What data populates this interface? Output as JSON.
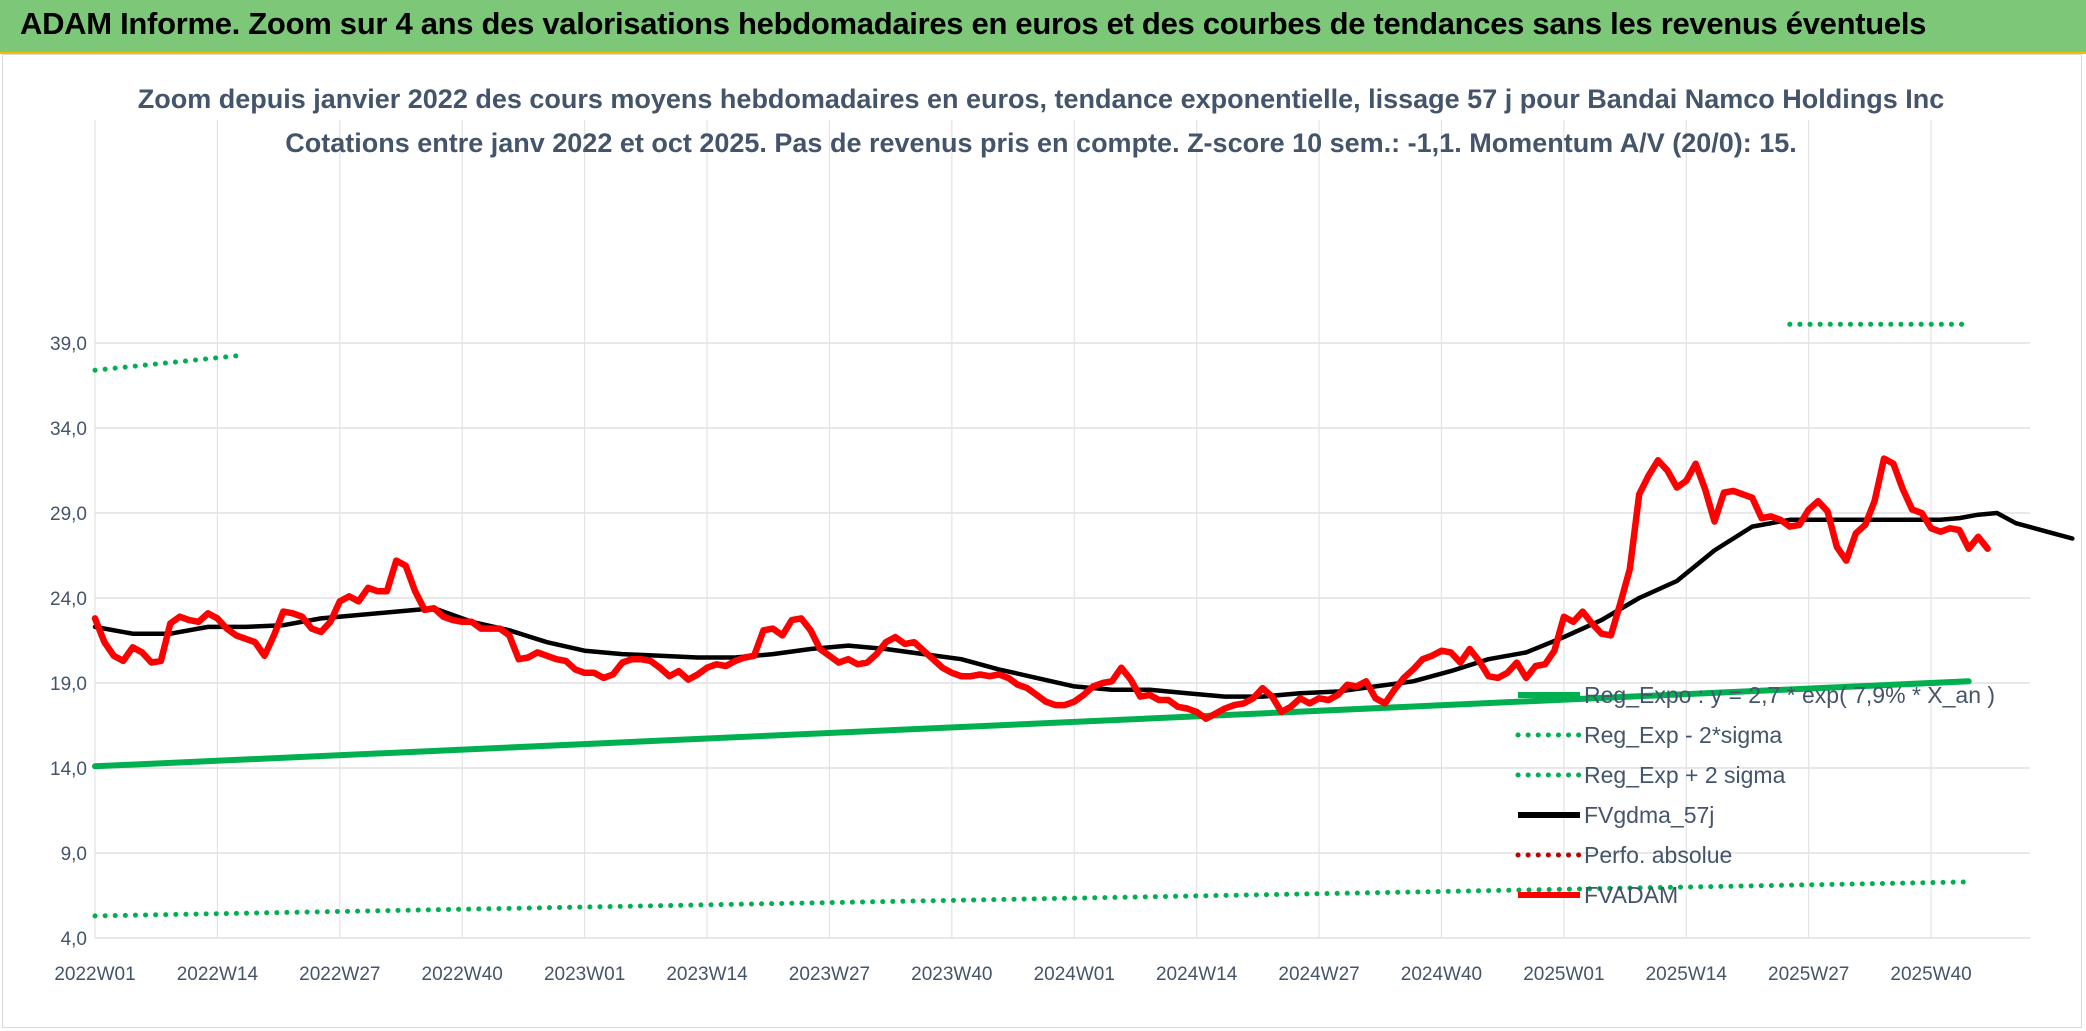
{
  "header": {
    "title": "ADAM Informe. Zoom sur 4 ans des valorisations hebdomadaires en euros et des courbes de tendances sans les revenus éventuels"
  },
  "chart_data": {
    "type": "line",
    "title": "Zoom depuis janvier 2022 des cours moyens hebdomadaires en euros, tendance exponentielle, lissage 57 j pour Bandai Namco Holdings Inc",
    "subtitle": "Cotations entre janv 2022 et oct 2025. Pas de revenus pris en compte. Z-score 10 sem.: -1,1. Momentum A/V (20/0): 15.",
    "xlabel": "",
    "ylabel": "",
    "ylim": [
      4.0,
      40.0
    ],
    "y_ticks": [
      "4,0",
      "9,0",
      "14,0",
      "19,0",
      "24,0",
      "29,0",
      "34,0",
      "39,0"
    ],
    "x_ticks": [
      {
        "label": "2022W01",
        "i": 0
      },
      {
        "label": "2022W14",
        "i": 13
      },
      {
        "label": "2022W27",
        "i": 26
      },
      {
        "label": "2022W40",
        "i": 39
      },
      {
        "label": "2023W01",
        "i": 52
      },
      {
        "label": "2023W14",
        "i": 65
      },
      {
        "label": "2023W27",
        "i": 78
      },
      {
        "label": "2023W40",
        "i": 91
      },
      {
        "label": "2024W01",
        "i": 104
      },
      {
        "label": "2024W14",
        "i": 117
      },
      {
        "label": "2024W27",
        "i": 130
      },
      {
        "label": "2024W40",
        "i": 143
      },
      {
        "label": "2025W01",
        "i": 156
      },
      {
        "label": "2025W14",
        "i": 169
      },
      {
        "label": "2025W27",
        "i": 182
      },
      {
        "label": "2025W40",
        "i": 195
      }
    ],
    "n_weeks": 200,
    "grid": true,
    "legend_position": "bottom-right",
    "series": [
      {
        "name": "Reg_Expo : y = 2,7 * exp( 7,9% *  X_an )",
        "color": "#00b050",
        "style": "solid",
        "points": [
          [
            0,
            14.1
          ],
          [
            199,
            19.1
          ]
        ]
      },
      {
        "name": "Reg_Exp - 2*sigma",
        "color": "#00b050",
        "style": "dotted",
        "points": [
          [
            0,
            5.3
          ],
          [
            199,
            7.3
          ]
        ]
      },
      {
        "name": "Reg_Exp + 2 sigma",
        "color": "#00b050",
        "style": "dotted",
        "points": [
          [
            0,
            37.4
          ],
          [
            16,
            38.3
          ]
        ],
        "points_2": [
          [
            180,
            40.1
          ],
          [
            199,
            40.1
          ]
        ]
      },
      {
        "name": "FVgdma_57j",
        "color": "#000000",
        "style": "solid",
        "points": [
          [
            0,
            22.3
          ],
          [
            4,
            21.9
          ],
          [
            8,
            21.9
          ],
          [
            12,
            22.3
          ],
          [
            16,
            22.3
          ],
          [
            20,
            22.4
          ],
          [
            24,
            22.8
          ],
          [
            28,
            23.0
          ],
          [
            32,
            23.2
          ],
          [
            36,
            23.4
          ],
          [
            40,
            22.6
          ],
          [
            44,
            22.1
          ],
          [
            48,
            21.4
          ],
          [
            52,
            20.9
          ],
          [
            56,
            20.7
          ],
          [
            60,
            20.6
          ],
          [
            64,
            20.5
          ],
          [
            68,
            20.5
          ],
          [
            72,
            20.7
          ],
          [
            76,
            21.0
          ],
          [
            80,
            21.2
          ],
          [
            84,
            21.0
          ],
          [
            88,
            20.7
          ],
          [
            92,
            20.4
          ],
          [
            96,
            19.8
          ],
          [
            100,
            19.3
          ],
          [
            104,
            18.8
          ],
          [
            108,
            18.6
          ],
          [
            112,
            18.6
          ],
          [
            116,
            18.4
          ],
          [
            120,
            18.2
          ],
          [
            124,
            18.2
          ],
          [
            128,
            18.4
          ],
          [
            132,
            18.5
          ],
          [
            136,
            18.8
          ],
          [
            140,
            19.1
          ],
          [
            144,
            19.7
          ],
          [
            148,
            20.4
          ],
          [
            152,
            20.8
          ],
          [
            156,
            21.7
          ],
          [
            160,
            22.7
          ],
          [
            164,
            24.0
          ],
          [
            168,
            25.0
          ],
          [
            172,
            26.8
          ],
          [
            176,
            28.2
          ],
          [
            180,
            28.6
          ],
          [
            184,
            28.6
          ],
          [
            188,
            28.6
          ],
          [
            192,
            28.6
          ],
          [
            196,
            28.6
          ],
          [
            198,
            28.7
          ],
          [
            200,
            28.9
          ],
          [
            202,
            29.0
          ],
          [
            204,
            28.4
          ],
          [
            206,
            28.1
          ],
          [
            208,
            27.8
          ],
          [
            210,
            27.5
          ]
        ]
      },
      {
        "name": "Perfo. absolue",
        "color": "#c00000",
        "style": "dotted",
        "points": []
      },
      {
        "name": "FVADAM",
        "color": "#ff0000",
        "style": "solid",
        "points": [
          [
            0,
            22.8
          ],
          [
            1,
            21.4
          ],
          [
            2,
            20.6
          ],
          [
            3,
            20.3
          ],
          [
            4,
            21.1
          ],
          [
            5,
            20.8
          ],
          [
            6,
            20.2
          ],
          [
            7,
            20.3
          ],
          [
            8,
            22.5
          ],
          [
            9,
            22.9
          ],
          [
            10,
            22.7
          ],
          [
            11,
            22.6
          ],
          [
            12,
            23.1
          ],
          [
            13,
            22.8
          ],
          [
            14,
            22.2
          ],
          [
            15,
            21.8
          ],
          [
            16,
            21.6
          ],
          [
            17,
            21.4
          ],
          [
            18,
            20.6
          ],
          [
            19,
            21.8
          ],
          [
            20,
            23.2
          ],
          [
            21,
            23.1
          ],
          [
            22,
            22.9
          ],
          [
            23,
            22.2
          ],
          [
            24,
            22.0
          ],
          [
            25,
            22.6
          ],
          [
            26,
            23.8
          ],
          [
            27,
            24.1
          ],
          [
            28,
            23.8
          ],
          [
            29,
            24.6
          ],
          [
            30,
            24.4
          ],
          [
            31,
            24.4
          ],
          [
            32,
            26.2
          ],
          [
            33,
            25.9
          ],
          [
            34,
            24.4
          ],
          [
            35,
            23.3
          ],
          [
            36,
            23.4
          ],
          [
            37,
            22.9
          ],
          [
            38,
            22.7
          ],
          [
            39,
            22.6
          ],
          [
            40,
            22.6
          ],
          [
            41,
            22.2
          ],
          [
            42,
            22.2
          ],
          [
            43,
            22.2
          ],
          [
            44,
            21.8
          ],
          [
            45,
            20.4
          ],
          [
            46,
            20.5
          ],
          [
            47,
            20.8
          ],
          [
            48,
            20.6
          ],
          [
            49,
            20.4
          ],
          [
            50,
            20.3
          ],
          [
            51,
            19.8
          ],
          [
            52,
            19.6
          ],
          [
            53,
            19.6
          ],
          [
            54,
            19.3
          ],
          [
            55,
            19.5
          ],
          [
            56,
            20.2
          ],
          [
            57,
            20.4
          ],
          [
            58,
            20.4
          ],
          [
            59,
            20.3
          ],
          [
            60,
            19.9
          ],
          [
            61,
            19.4
          ],
          [
            62,
            19.7
          ],
          [
            63,
            19.2
          ],
          [
            64,
            19.5
          ],
          [
            65,
            19.9
          ],
          [
            66,
            20.1
          ],
          [
            67,
            20.0
          ],
          [
            68,
            20.3
          ],
          [
            69,
            20.5
          ],
          [
            70,
            20.6
          ],
          [
            71,
            22.1
          ],
          [
            72,
            22.2
          ],
          [
            73,
            21.8
          ],
          [
            74,
            22.7
          ],
          [
            75,
            22.8
          ],
          [
            76,
            22.1
          ],
          [
            77,
            21.0
          ],
          [
            78,
            20.6
          ],
          [
            79,
            20.2
          ],
          [
            80,
            20.4
          ],
          [
            81,
            20.1
          ],
          [
            82,
            20.2
          ],
          [
            83,
            20.7
          ],
          [
            84,
            21.4
          ],
          [
            85,
            21.7
          ],
          [
            86,
            21.3
          ],
          [
            87,
            21.4
          ],
          [
            88,
            20.9
          ],
          [
            89,
            20.4
          ],
          [
            90,
            19.9
          ],
          [
            91,
            19.6
          ],
          [
            92,
            19.4
          ],
          [
            93,
            19.4
          ],
          [
            94,
            19.5
          ],
          [
            95,
            19.4
          ],
          [
            96,
            19.5
          ],
          [
            97,
            19.3
          ],
          [
            98,
            18.9
          ],
          [
            99,
            18.7
          ],
          [
            100,
            18.3
          ],
          [
            101,
            17.9
          ],
          [
            102,
            17.7
          ],
          [
            103,
            17.7
          ],
          [
            104,
            17.9
          ],
          [
            105,
            18.3
          ],
          [
            106,
            18.8
          ],
          [
            107,
            19.0
          ],
          [
            108,
            19.1
          ],
          [
            109,
            19.9
          ],
          [
            110,
            19.2
          ],
          [
            111,
            18.2
          ],
          [
            112,
            18.3
          ],
          [
            113,
            18.0
          ],
          [
            114,
            18.0
          ],
          [
            115,
            17.6
          ],
          [
            116,
            17.5
          ],
          [
            117,
            17.3
          ],
          [
            118,
            16.9
          ],
          [
            119,
            17.2
          ],
          [
            120,
            17.5
          ],
          [
            121,
            17.7
          ],
          [
            122,
            17.8
          ],
          [
            123,
            18.1
          ],
          [
            124,
            18.7
          ],
          [
            125,
            18.2
          ],
          [
            126,
            17.3
          ],
          [
            127,
            17.6
          ],
          [
            128,
            18.1
          ],
          [
            129,
            17.8
          ],
          [
            130,
            18.1
          ],
          [
            131,
            18.0
          ],
          [
            132,
            18.3
          ],
          [
            133,
            18.9
          ],
          [
            134,
            18.8
          ],
          [
            135,
            19.1
          ],
          [
            136,
            18.1
          ],
          [
            137,
            17.8
          ],
          [
            138,
            18.6
          ],
          [
            139,
            19.3
          ],
          [
            140,
            19.8
          ],
          [
            141,
            20.4
          ],
          [
            142,
            20.6
          ],
          [
            143,
            20.9
          ],
          [
            144,
            20.8
          ],
          [
            145,
            20.2
          ],
          [
            146,
            21.0
          ],
          [
            147,
            20.3
          ],
          [
            148,
            19.4
          ],
          [
            149,
            19.3
          ],
          [
            150,
            19.6
          ],
          [
            151,
            20.2
          ],
          [
            152,
            19.3
          ],
          [
            153,
            20.0
          ],
          [
            154,
            20.1
          ],
          [
            155,
            20.9
          ],
          [
            156,
            22.9
          ],
          [
            157,
            22.6
          ],
          [
            158,
            23.2
          ],
          [
            159,
            22.5
          ],
          [
            160,
            21.9
          ],
          [
            161,
            21.8
          ],
          [
            162,
            23.7
          ],
          [
            163,
            25.7
          ],
          [
            164,
            30.1
          ],
          [
            165,
            31.2
          ],
          [
            166,
            32.1
          ],
          [
            167,
            31.5
          ],
          [
            168,
            30.5
          ],
          [
            169,
            30.9
          ],
          [
            170,
            31.9
          ],
          [
            171,
            30.4
          ],
          [
            172,
            28.5
          ],
          [
            173,
            30.2
          ],
          [
            174,
            30.3
          ],
          [
            175,
            30.1
          ],
          [
            176,
            29.9
          ],
          [
            177,
            28.7
          ],
          [
            178,
            28.8
          ],
          [
            179,
            28.6
          ],
          [
            180,
            28.2
          ],
          [
            181,
            28.3
          ],
          [
            182,
            29.2
          ],
          [
            183,
            29.7
          ],
          [
            184,
            29.1
          ],
          [
            185,
            27.0
          ],
          [
            186,
            26.2
          ],
          [
            187,
            27.8
          ],
          [
            188,
            28.3
          ],
          [
            189,
            29.7
          ],
          [
            190,
            32.2
          ],
          [
            191,
            31.9
          ],
          [
            192,
            30.4
          ],
          [
            193,
            29.2
          ],
          [
            194,
            29.0
          ],
          [
            195,
            28.1
          ],
          [
            196,
            27.9
          ],
          [
            197,
            28.1
          ],
          [
            198,
            28.0
          ],
          [
            199,
            26.9
          ],
          [
            200,
            27.6
          ],
          [
            201,
            26.9
          ]
        ]
      }
    ]
  }
}
